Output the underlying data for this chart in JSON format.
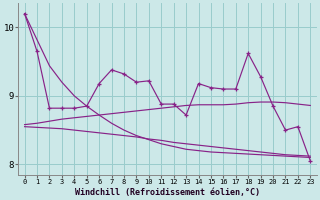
{
  "xlabel": "Windchill (Refroidissement éolien,°C)",
  "bg_color": "#cce8e8",
  "line_color": "#882288",
  "grid_color": "#99cccc",
  "hours": [
    0,
    1,
    2,
    3,
    4,
    5,
    6,
    7,
    8,
    9,
    10,
    11,
    12,
    13,
    14,
    15,
    16,
    17,
    18,
    19,
    20,
    21,
    22,
    23
  ],
  "data_line": [
    10.2,
    9.65,
    8.82,
    8.82,
    8.82,
    8.85,
    9.18,
    9.38,
    9.32,
    9.2,
    9.22,
    8.88,
    8.88,
    8.72,
    9.18,
    9.12,
    9.1,
    9.1,
    9.62,
    9.28,
    8.85,
    8.5,
    8.55,
    8.05
  ],
  "diag_desc": [
    10.2,
    9.82,
    9.44,
    9.2,
    9.0,
    8.85,
    8.72,
    8.6,
    8.5,
    8.42,
    8.36,
    8.3,
    8.26,
    8.22,
    8.2,
    8.18,
    8.17,
    8.16,
    8.15,
    8.14,
    8.13,
    8.12,
    8.11,
    8.1
  ],
  "diag_asc": [
    8.58,
    8.6,
    8.63,
    8.66,
    8.68,
    8.7,
    8.72,
    8.74,
    8.76,
    8.78,
    8.8,
    8.82,
    8.84,
    8.86,
    8.87,
    8.87,
    8.87,
    8.88,
    8.9,
    8.91,
    8.91,
    8.9,
    8.88,
    8.86
  ],
  "flat_lower": [
    8.55,
    8.54,
    8.53,
    8.52,
    8.5,
    8.48,
    8.46,
    8.44,
    8.42,
    8.4,
    8.37,
    8.35,
    8.32,
    8.3,
    8.28,
    8.26,
    8.24,
    8.22,
    8.2,
    8.18,
    8.16,
    8.14,
    8.13,
    8.12
  ],
  "ylim": [
    7.85,
    10.35
  ],
  "yticks": [
    8,
    9,
    10
  ],
  "xticks": [
    0,
    1,
    2,
    3,
    4,
    5,
    6,
    7,
    8,
    9,
    10,
    11,
    12,
    13,
    14,
    15,
    16,
    17,
    18,
    19,
    20,
    21,
    22,
    23
  ]
}
